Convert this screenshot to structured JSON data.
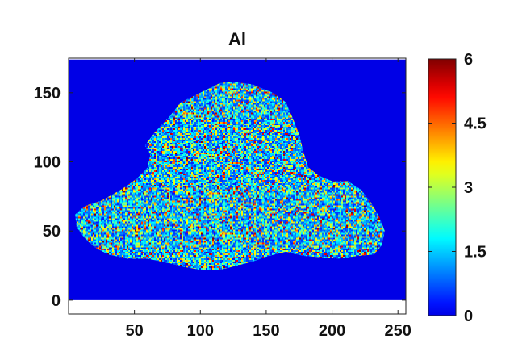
{
  "chart_data": {
    "type": "heatmap",
    "title": "Al",
    "xlabel": "",
    "ylabel": "",
    "xlim": [
      0,
      256
    ],
    "ylim": [
      -10,
      175
    ],
    "data_extent": {
      "x": [
        0,
        256
      ],
      "y": [
        0,
        174
      ]
    },
    "x_ticks": [
      50,
      100,
      150,
      200,
      250
    ],
    "y_ticks": [
      0,
      50,
      100,
      150
    ],
    "grid": false,
    "background_value": 0,
    "colormap": "jet",
    "colorbar": {
      "range": [
        0,
        6
      ],
      "ticks": [
        0,
        1.5,
        3,
        4.5,
        6
      ],
      "tick_labels": [
        "0",
        "1.5",
        "3",
        "4.5",
        "6"
      ],
      "placement": "right"
    },
    "region_outline": [
      [
        5,
        62
      ],
      [
        12,
        68
      ],
      [
        25,
        72
      ],
      [
        40,
        80
      ],
      [
        52,
        88
      ],
      [
        60,
        96
      ],
      [
        62,
        105
      ],
      [
        58,
        112
      ],
      [
        66,
        122
      ],
      [
        76,
        132
      ],
      [
        85,
        143
      ],
      [
        100,
        150
      ],
      [
        115,
        157
      ],
      [
        125,
        158
      ],
      [
        140,
        156
      ],
      [
        155,
        150
      ],
      [
        165,
        143
      ],
      [
        170,
        132
      ],
      [
        175,
        120
      ],
      [
        178,
        108
      ],
      [
        182,
        96
      ],
      [
        190,
        90
      ],
      [
        200,
        86
      ],
      [
        212,
        86
      ],
      [
        222,
        80
      ],
      [
        230,
        70
      ],
      [
        236,
        60
      ],
      [
        240,
        50
      ],
      [
        238,
        40
      ],
      [
        232,
        33
      ],
      [
        220,
        32
      ],
      [
        205,
        30
      ],
      [
        192,
        31
      ],
      [
        178,
        32
      ],
      [
        165,
        35
      ],
      [
        152,
        32
      ],
      [
        140,
        28
      ],
      [
        128,
        25
      ],
      [
        115,
        22
      ],
      [
        100,
        22
      ],
      [
        88,
        24
      ],
      [
        75,
        27
      ],
      [
        60,
        30
      ],
      [
        45,
        30
      ],
      [
        30,
        33
      ],
      [
        20,
        38
      ],
      [
        12,
        45
      ],
      [
        6,
        53
      ]
    ],
    "value_distribution": "noisy pixel map inside the sample region; mostly 0.3-2, frequent 2-4, sparse hot spots 4-6"
  }
}
